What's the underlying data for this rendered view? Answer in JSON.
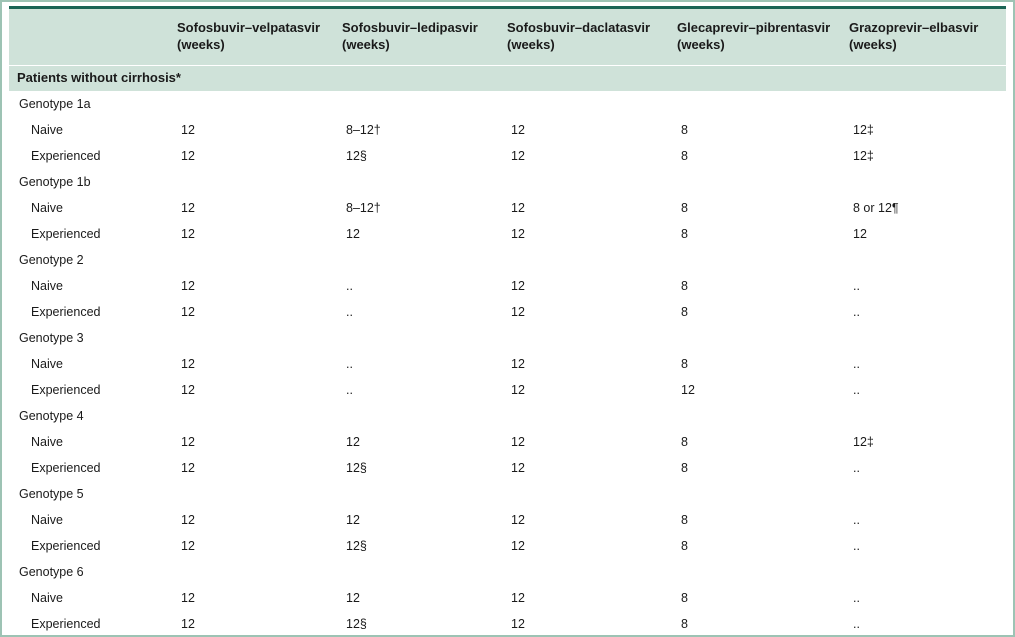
{
  "table": {
    "header": {
      "columns": [
        {
          "name": "Sofosbuvir–velpatasvir",
          "unit": "(weeks)"
        },
        {
          "name": "Sofosbuvir–ledipasvir",
          "unit": "(weeks)"
        },
        {
          "name": "Sofosbuvir–daclatasvir",
          "unit": "(weeks)"
        },
        {
          "name": "Glecaprevir–pibrentasvir",
          "unit": "(weeks)"
        },
        {
          "name": "Grazoprevir–elbasvir",
          "unit": "(weeks)"
        }
      ]
    },
    "section_title": "Patients without cirrhosis*",
    "groups": [
      {
        "name": "Genotype 1a",
        "rows": [
          {
            "label": "Naive",
            "values": [
              "12",
              "8–12†",
              "12",
              "8",
              "12‡"
            ]
          },
          {
            "label": "Experienced",
            "values": [
              "12",
              "12§",
              "12",
              "8",
              "12‡"
            ]
          }
        ]
      },
      {
        "name": "Genotype 1b",
        "rows": [
          {
            "label": "Naive",
            "values": [
              "12",
              "8–12†",
              "12",
              "8",
              "8 or 12¶"
            ]
          },
          {
            "label": "Experienced",
            "values": [
              "12",
              "12",
              "12",
              "8",
              "12"
            ]
          }
        ]
      },
      {
        "name": "Genotype 2",
        "rows": [
          {
            "label": "Naive",
            "values": [
              "12",
              "..",
              "12",
              "8",
              ".."
            ]
          },
          {
            "label": "Experienced",
            "values": [
              "12",
              "..",
              "12",
              "8",
              ".."
            ]
          }
        ]
      },
      {
        "name": "Genotype 3",
        "rows": [
          {
            "label": "Naive",
            "values": [
              "12",
              "..",
              "12",
              "8",
              ".."
            ]
          },
          {
            "label": "Experienced",
            "values": [
              "12",
              "..",
              "12",
              "12",
              ".."
            ]
          }
        ]
      },
      {
        "name": "Genotype 4",
        "rows": [
          {
            "label": "Naive",
            "values": [
              "12",
              "12",
              "12",
              "8",
              "12‡"
            ]
          },
          {
            "label": "Experienced",
            "values": [
              "12",
              "12§",
              "12",
              "8",
              ".."
            ]
          }
        ]
      },
      {
        "name": "Genotype 5",
        "rows": [
          {
            "label": "Naive",
            "values": [
              "12",
              "12",
              "12",
              "8",
              ".."
            ]
          },
          {
            "label": "Experienced",
            "values": [
              "12",
              "12§",
              "12",
              "8",
              ".."
            ]
          }
        ]
      },
      {
        "name": "Genotype 6",
        "rows": [
          {
            "label": "Naive",
            "values": [
              "12",
              "12",
              "12",
              "8",
              ".."
            ]
          },
          {
            "label": "Experienced",
            "values": [
              "12",
              "12§",
              "12",
              "8",
              ".."
            ]
          }
        ]
      }
    ]
  }
}
